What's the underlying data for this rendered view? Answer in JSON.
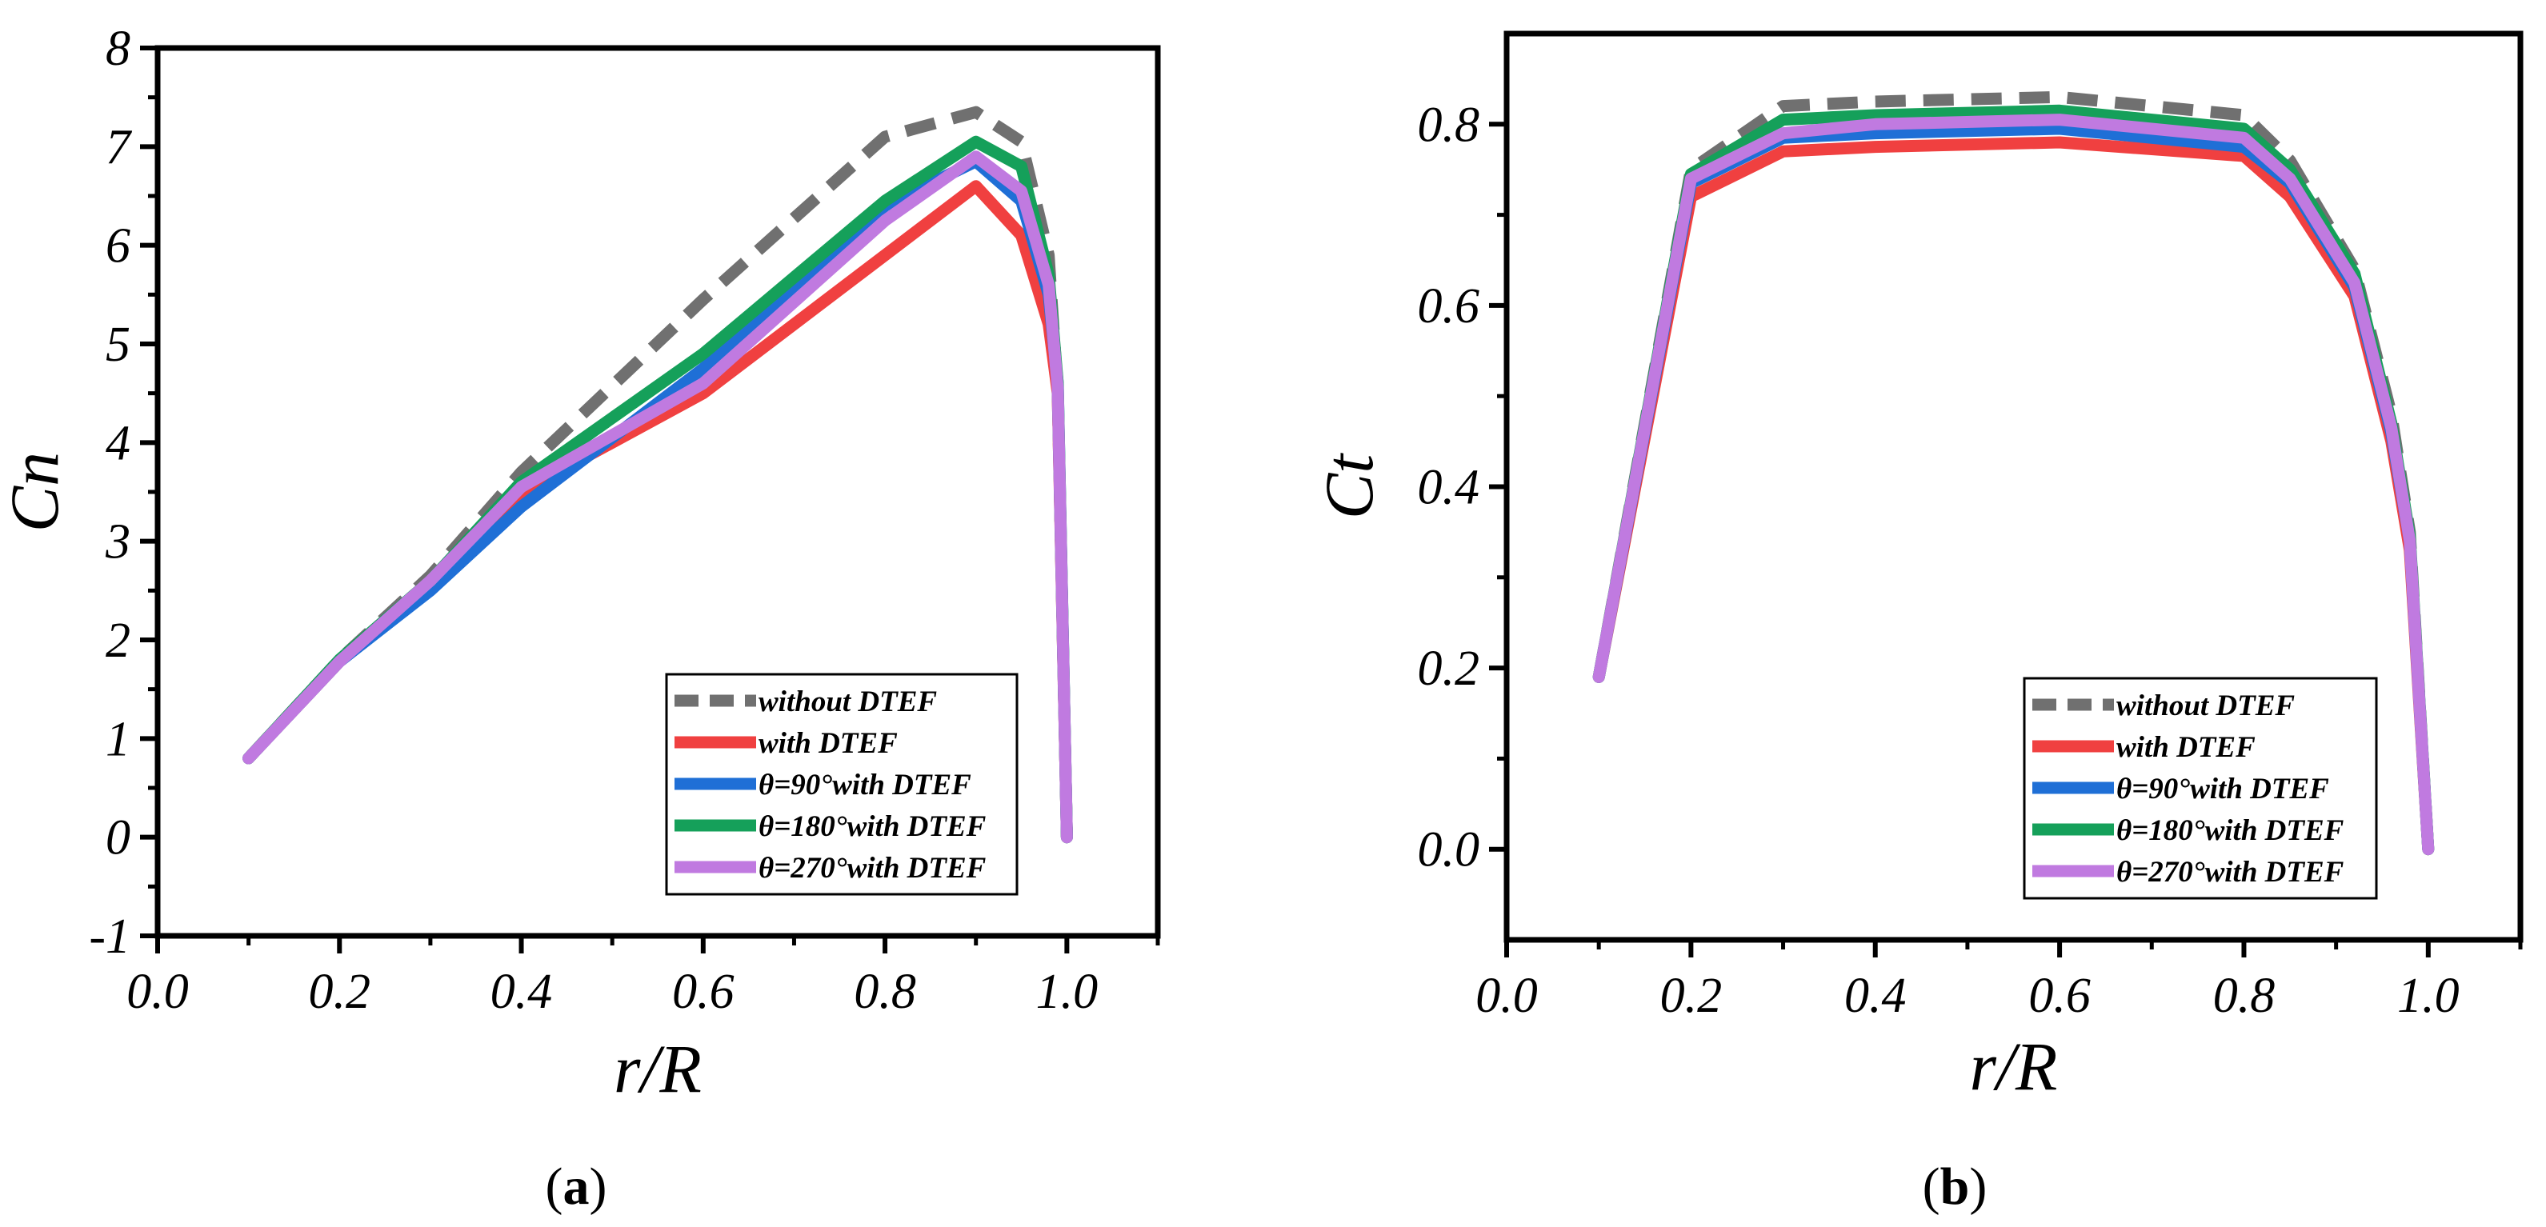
{
  "colors": {
    "without_dtef": "#707070",
    "with_dtef": "#f04040",
    "theta90": "#1f6fd6",
    "theta180": "#15a05a",
    "theta270": "#c07ae0"
  },
  "chart_data": [
    {
      "type": "line",
      "panel": "a",
      "caption": "a",
      "xlabel": "r/R",
      "ylabel": "Cn",
      "xlim": [
        0.0,
        1.1
      ],
      "ylim": [
        -1,
        8
      ],
      "xticks": [
        0.0,
        0.2,
        0.4,
        0.6,
        0.8,
        1.0
      ],
      "xtick_labels": [
        "0.0",
        "0.2",
        "0.4",
        "0.6",
        "0.8",
        "1.0"
      ],
      "yticks": [
        -1,
        0,
        1,
        2,
        3,
        4,
        5,
        6,
        7,
        8
      ],
      "ytick_labels": [
        "-1",
        "0",
        "1",
        "2",
        "3",
        "4",
        "5",
        "6",
        "7",
        "8"
      ],
      "legend_position": "bottom-right",
      "series": [
        {
          "name": "without DTEF",
          "style": "dashed",
          "color_key": "without_dtef",
          "x": [
            0.1,
            0.2,
            0.3,
            0.4,
            0.6,
            0.8,
            0.9,
            0.95,
            0.98,
            0.99,
            1.0
          ],
          "y": [
            0.8,
            1.8,
            2.65,
            3.7,
            5.45,
            7.1,
            7.35,
            7.05,
            5.9,
            4.5,
            0.0
          ]
        },
        {
          "name": "with DTEF",
          "style": "solid",
          "color_key": "with_dtef",
          "x": [
            0.1,
            0.2,
            0.3,
            0.4,
            0.6,
            0.8,
            0.9,
            0.95,
            0.98,
            0.99,
            1.0
          ],
          "y": [
            0.8,
            1.78,
            2.55,
            3.5,
            4.5,
            5.9,
            6.6,
            6.1,
            5.2,
            4.5,
            0.0
          ]
        },
        {
          "name": "θ=90°with DTEF",
          "style": "solid",
          "color_key": "theta90",
          "x": [
            0.1,
            0.2,
            0.3,
            0.4,
            0.6,
            0.8,
            0.9,
            0.95,
            0.98,
            0.99,
            1.0
          ],
          "y": [
            0.8,
            1.78,
            2.5,
            3.35,
            4.75,
            6.4,
            6.85,
            6.45,
            5.5,
            4.6,
            0.0
          ]
        },
        {
          "name": "θ=180°with DTEF",
          "style": "solid",
          "color_key": "theta180",
          "x": [
            0.1,
            0.2,
            0.3,
            0.4,
            0.6,
            0.8,
            0.9,
            0.95,
            0.98,
            0.99,
            1.0
          ],
          "y": [
            0.8,
            1.8,
            2.6,
            3.6,
            4.9,
            6.45,
            7.05,
            6.8,
            5.7,
            4.6,
            0.0
          ]
        },
        {
          "name": "θ=270°with DTEF",
          "style": "solid",
          "color_key": "theta270",
          "x": [
            0.1,
            0.2,
            0.3,
            0.4,
            0.6,
            0.8,
            0.9,
            0.95,
            0.98,
            0.99,
            1.0
          ],
          "y": [
            0.8,
            1.78,
            2.6,
            3.55,
            4.6,
            6.25,
            6.9,
            6.55,
            5.6,
            4.55,
            0.0
          ]
        }
      ]
    },
    {
      "type": "line",
      "panel": "b",
      "caption": "b",
      "xlabel": "r/R",
      "ylabel": "Ct",
      "xlim": [
        0.0,
        1.1
      ],
      "ylim": [
        -0.1,
        0.9
      ],
      "xticks": [
        0.0,
        0.2,
        0.4,
        0.6,
        0.8,
        1.0
      ],
      "xtick_labels": [
        "0.0",
        "0.2",
        "0.4",
        "0.6",
        "0.8",
        "1.0"
      ],
      "yticks": [
        0.0,
        0.2,
        0.4,
        0.6,
        0.8
      ],
      "ytick_labels": [
        "0.0",
        "0.2",
        "0.4",
        "0.6",
        "0.8"
      ],
      "legend_position": "bottom-right",
      "series": [
        {
          "name": "without DTEF",
          "style": "dashed",
          "color_key": "without_dtef",
          "x": [
            0.1,
            0.2,
            0.3,
            0.4,
            0.6,
            0.8,
            0.85,
            0.92,
            0.96,
            0.98,
            1.0
          ],
          "y": [
            0.19,
            0.75,
            0.82,
            0.825,
            0.83,
            0.81,
            0.76,
            0.64,
            0.48,
            0.35,
            0.0
          ]
        },
        {
          "name": "with DTEF",
          "style": "solid",
          "color_key": "with_dtef",
          "x": [
            0.1,
            0.2,
            0.3,
            0.4,
            0.6,
            0.8,
            0.85,
            0.92,
            0.96,
            0.98,
            1.0
          ],
          "y": [
            0.19,
            0.72,
            0.77,
            0.775,
            0.78,
            0.765,
            0.72,
            0.61,
            0.45,
            0.33,
            0.0
          ]
        },
        {
          "name": "θ=90°with DTEF",
          "style": "solid",
          "color_key": "theta90",
          "x": [
            0.1,
            0.2,
            0.3,
            0.4,
            0.6,
            0.8,
            0.85,
            0.92,
            0.96,
            0.98,
            1.0
          ],
          "y": [
            0.19,
            0.735,
            0.785,
            0.79,
            0.795,
            0.775,
            0.735,
            0.62,
            0.46,
            0.34,
            0.0
          ]
        },
        {
          "name": "θ=180°with DTEF",
          "style": "solid",
          "color_key": "theta180",
          "x": [
            0.1,
            0.2,
            0.3,
            0.4,
            0.6,
            0.8,
            0.85,
            0.92,
            0.96,
            0.98,
            1.0
          ],
          "y": [
            0.19,
            0.745,
            0.805,
            0.81,
            0.815,
            0.795,
            0.75,
            0.635,
            0.47,
            0.345,
            0.0
          ]
        },
        {
          "name": "θ=270°with DTEF",
          "style": "solid",
          "color_key": "theta270",
          "x": [
            0.1,
            0.2,
            0.3,
            0.4,
            0.6,
            0.8,
            0.85,
            0.92,
            0.96,
            0.98,
            1.0
          ],
          "y": [
            0.19,
            0.74,
            0.79,
            0.8,
            0.805,
            0.785,
            0.74,
            0.625,
            0.465,
            0.34,
            0.0
          ]
        }
      ]
    }
  ]
}
